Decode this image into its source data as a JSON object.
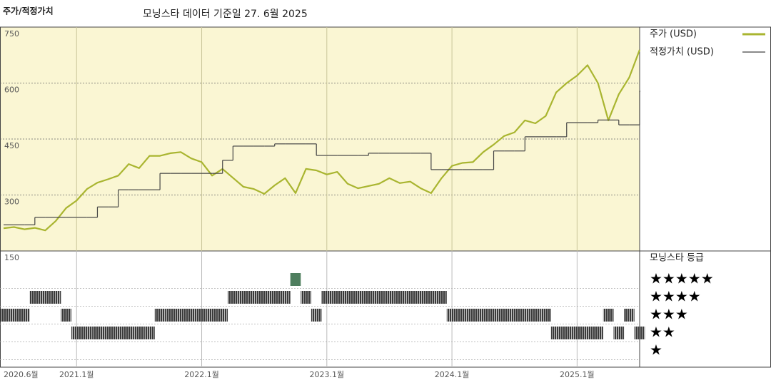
{
  "chart_data": {
    "type": "line",
    "title": "주가/적정가치",
    "subtitle": "모닝스타 데이터 기준일 27. 6월 2025",
    "x": [
      "2020-06",
      "2020-07",
      "2020-08",
      "2020-09",
      "2020-10",
      "2020-11",
      "2020-12",
      "2021-01",
      "2021-02",
      "2021-03",
      "2021-04",
      "2021-05",
      "2021-06",
      "2021-07",
      "2021-08",
      "2021-09",
      "2021-10",
      "2021-11",
      "2021-12",
      "2022-01",
      "2022-02",
      "2022-03",
      "2022-04",
      "2022-05",
      "2022-06",
      "2022-07",
      "2022-08",
      "2022-09",
      "2022-10",
      "2022-11",
      "2022-12",
      "2023-01",
      "2023-02",
      "2023-03",
      "2023-04",
      "2023-05",
      "2023-06",
      "2023-07",
      "2023-08",
      "2023-09",
      "2023-10",
      "2023-11",
      "2023-12",
      "2024-01",
      "2024-02",
      "2024-03",
      "2024-04",
      "2024-05",
      "2024-06",
      "2024-07",
      "2024-08",
      "2024-09",
      "2024-10",
      "2024-11",
      "2024-12",
      "2025-01",
      "2025-02",
      "2025-03",
      "2025-04",
      "2025-05",
      "2025-06",
      "2025-07"
    ],
    "series": [
      {
        "name": "주가 (USD)",
        "color": "#a9b530",
        "values": [
          211,
          214,
          208,
          212,
          205,
          230,
          265,
          285,
          316,
          333,
          342,
          352,
          383,
          372,
          405,
          405,
          412,
          415,
          398,
          388,
          352,
          370,
          346,
          322,
          316,
          303,
          326,
          345,
          305,
          370,
          366,
          355,
          362,
          330,
          318,
          324,
          330,
          345,
          332,
          336,
          318,
          305,
          345,
          378,
          386,
          388,
          415,
          435,
          458,
          468,
          500,
          492,
          512,
          575,
          600,
          620,
          648,
          600,
          500,
          570,
          615,
          689
        ]
      },
      {
        "name": "적정가치 (USD)",
        "color": "#444444",
        "step": true,
        "values": [
          220,
          220,
          220,
          240,
          240,
          240,
          240,
          240,
          240,
          268,
          268,
          314,
          314,
          314,
          314,
          358,
          358,
          358,
          358,
          358,
          358,
          393,
          431,
          431,
          431,
          431,
          437,
          437,
          437,
          437,
          406,
          406,
          406,
          406,
          406,
          412,
          412,
          412,
          412,
          412,
          412,
          368,
          368,
          368,
          368,
          368,
          368,
          418,
          418,
          418,
          456,
          456,
          456,
          456,
          494,
          494,
          494,
          501,
          501,
          488,
          488,
          578
        ]
      }
    ],
    "xlim": [
      "2020-06",
      "2025-07"
    ],
    "xticks": [
      {
        "value": "2020-06",
        "label": "2020.6월"
      },
      {
        "value": "2021-01",
        "label": "2021.1월"
      },
      {
        "value": "2022-01",
        "label": "2022.1월"
      },
      {
        "value": "2023-01",
        "label": "2023.1월"
      },
      {
        "value": "2024-01",
        "label": "2024.1월"
      },
      {
        "value": "2025-01",
        "label": "2025.1월"
      }
    ],
    "ylim": [
      150,
      750
    ],
    "yticks": [
      150,
      300,
      450,
      600,
      750
    ],
    "grid": true,
    "rating": {
      "title": "모닝스타 등급",
      "color": "#4a4a4a",
      "top_color": "#4e7e5e",
      "levels": [
        {
          "value": 5,
          "label": "★★★★★"
        },
        {
          "value": 4,
          "label": "★★★★"
        },
        {
          "value": 3,
          "label": "★★★"
        },
        {
          "value": 2,
          "label": "★★"
        },
        {
          "value": 1,
          "label": "★"
        }
      ],
      "values": [
        3,
        3,
        3,
        4,
        4,
        4,
        3,
        2,
        2,
        2,
        2,
        2,
        2,
        2,
        2,
        3,
        3,
        3,
        3,
        3,
        3,
        3,
        4,
        4,
        4,
        4,
        4,
        4,
        5,
        4,
        3,
        4,
        4,
        4,
        4,
        4,
        4,
        4,
        4,
        4,
        4,
        4,
        4,
        3,
        3,
        3,
        3,
        3,
        3,
        3,
        3,
        3,
        3,
        2,
        2,
        2,
        2,
        2,
        3,
        2,
        3,
        2
      ]
    }
  }
}
